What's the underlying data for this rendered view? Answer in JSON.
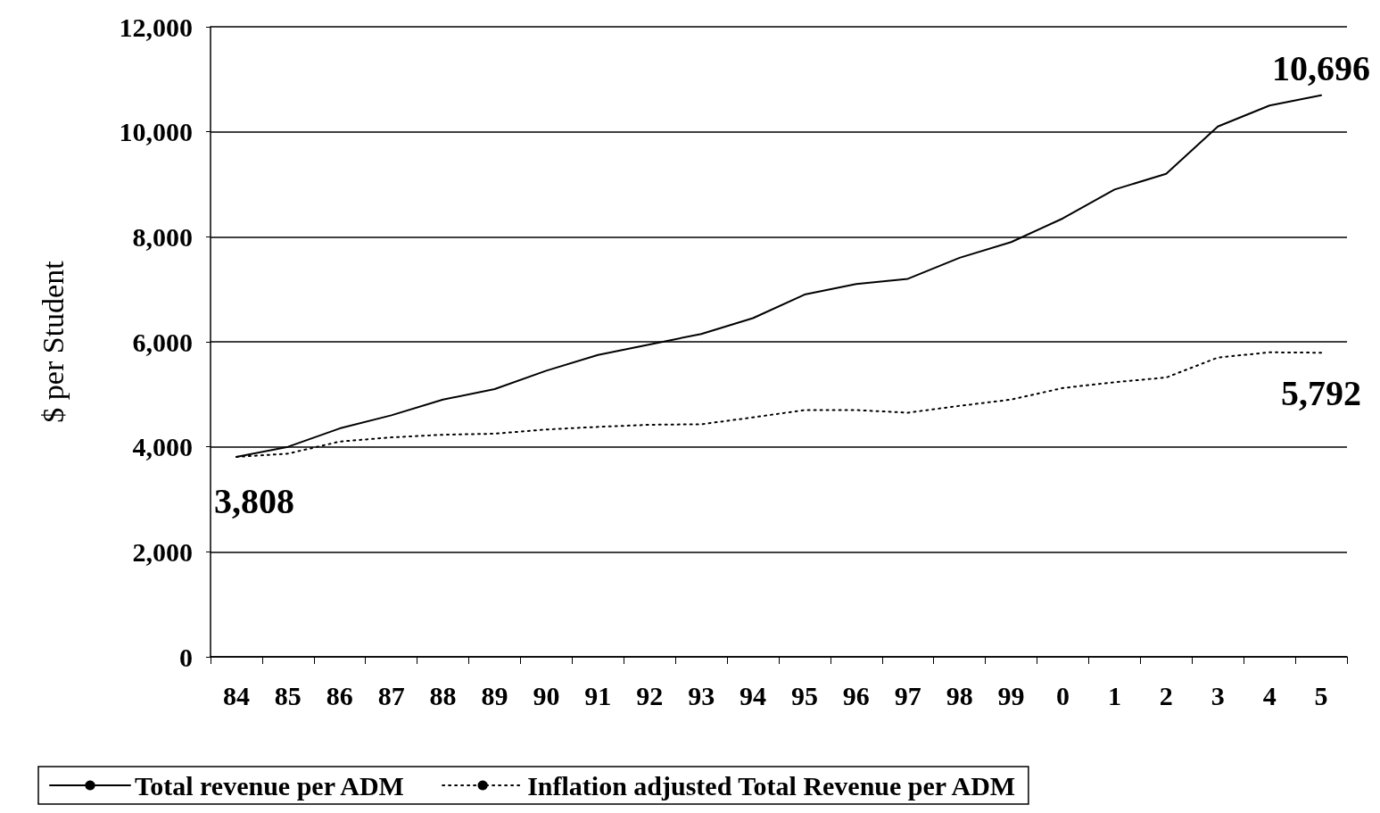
{
  "chart_data": {
    "type": "line",
    "ylabel": "$ per Student",
    "categories": [
      "84",
      "85",
      "86",
      "87",
      "88",
      "89",
      "90",
      "91",
      "92",
      "93",
      "94",
      "95",
      "96",
      "97",
      "98",
      "99",
      "0",
      "1",
      "2",
      "3",
      "4",
      "5"
    ],
    "series": [
      {
        "name": "Total revenue per ADM",
        "color": "#000000",
        "line_style": "solid",
        "values": [
          3808,
          4000,
          4350,
          4600,
          4900,
          5100,
          5450,
          5750,
          5950,
          6150,
          6450,
          6900,
          7100,
          7200,
          7600,
          7900,
          8350,
          8900,
          9200,
          10100,
          10500,
          10696
        ],
        "value_labels": [
          "3,808",
          null,
          null,
          null,
          null,
          null,
          null,
          null,
          null,
          null,
          null,
          null,
          null,
          null,
          null,
          null,
          null,
          null,
          null,
          null,
          null,
          "10,696"
        ]
      },
      {
        "name": "Inflation adjusted Total Revenue per ADM",
        "color": "#000000",
        "line_style": "dotted",
        "values": [
          3808,
          3870,
          4100,
          4180,
          4230,
          4250,
          4330,
          4380,
          4420,
          4430,
          4560,
          4700,
          4700,
          4650,
          4780,
          4900,
          5120,
          5230,
          5320,
          5700,
          5800,
          5792
        ],
        "value_labels": [
          null,
          null,
          null,
          null,
          null,
          null,
          null,
          null,
          null,
          null,
          null,
          null,
          null,
          null,
          null,
          null,
          null,
          null,
          null,
          null,
          null,
          "5,792"
        ]
      }
    ],
    "ylim": [
      0,
      12000
    ],
    "yticks": [
      0,
      {
        "value": 2000,
        "label": "2,000"
      },
      {
        "value": 4000,
        "label": "4,000"
      },
      {
        "value": 6000,
        "label": "6,000"
      },
      {
        "value": 8000,
        "label": "8,000"
      },
      {
        "value": 10000,
        "label": "10,000"
      },
      {
        "value": 12000,
        "label": "12,000"
      }
    ],
    "grid": "y",
    "legend": "bottom",
    "marker": "none"
  }
}
